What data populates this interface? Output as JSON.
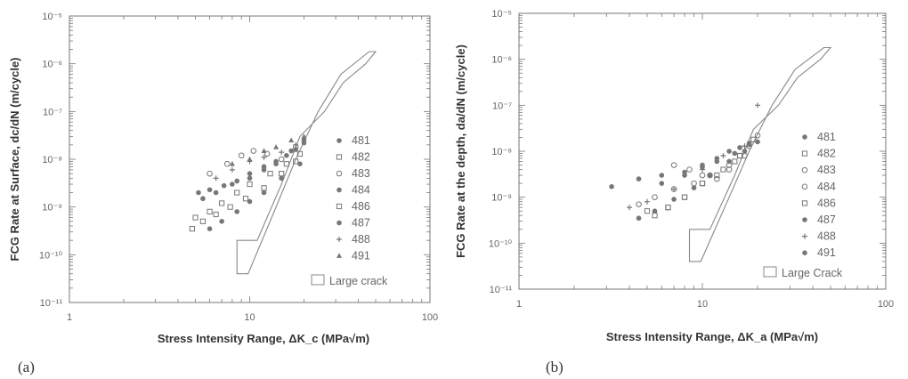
{
  "chart_data": [
    {
      "type": "scatter",
      "panel_label": "(a)",
      "xlabel": "Stress Intensity Range, ΔK_c   (MPa√m)",
      "ylabel": "FCG Rate at Surface,  dc/dN   (m/cycle)",
      "x_scale": "log",
      "y_scale": "log",
      "xlim": [
        1,
        100
      ],
      "ylim": [
        1e-11,
        1e-05
      ],
      "x_ticks": [
        "1",
        "10",
        "100"
      ],
      "y_ticks": [
        "10⁻⁵",
        "10⁻⁶",
        "10⁻⁷",
        "10⁻⁸",
        "10⁻⁹",
        "10⁻¹⁰",
        "10⁻¹¹"
      ],
      "legend": [
        "481",
        "482",
        "483",
        "484",
        "486",
        "487",
        "488",
        "491"
      ],
      "large_crack_label": "Large crack",
      "large_crack_band": [
        [
          8.5,
          4e-11
        ],
        [
          9.8,
          4e-11
        ],
        [
          14,
          1e-09
        ],
        [
          18,
          1e-08
        ],
        [
          24,
          1e-07
        ],
        [
          32,
          6e-07
        ],
        [
          46,
          1.8e-06
        ],
        [
          50,
          1.8e-06
        ],
        [
          44,
          1e-06
        ],
        [
          33,
          4e-07
        ],
        [
          26,
          1e-07
        ],
        [
          19,
          3e-08
        ],
        [
          15,
          3e-09
        ],
        [
          11,
          2e-10
        ],
        [
          8.5,
          2e-10
        ]
      ],
      "series": [
        {
          "name": "481",
          "x": [
            5.2,
            6.0,
            7.2,
            8.5,
            10.0,
            12.0,
            14.0,
            16.0,
            18.0,
            20.0
          ],
          "y": [
            2e-09,
            2.3e-09,
            2.8e-09,
            3.5e-09,
            4e-09,
            6e-09,
            8e-09,
            1.2e-08,
            1.6e-08,
            2.5e-08
          ]
        },
        {
          "name": "482",
          "x": [
            4.8,
            5.5,
            6.5,
            7.8,
            9.5,
            12.0,
            15.0,
            18.0
          ],
          "y": [
            3.5e-10,
            5e-10,
            7e-10,
            1e-09,
            1.5e-09,
            2.5e-09,
            5e-09,
            9e-09
          ]
        },
        {
          "name": "483",
          "x": [
            6.0,
            7.5,
            9.0,
            10.5,
            12.5,
            15.0,
            18.0
          ],
          "y": [
            5e-09,
            8e-09,
            1.2e-08,
            1.5e-08,
            1.3e-08,
            1e-08,
            1.8e-08
          ]
        },
        {
          "name": "484",
          "x": [
            5.5,
            6.5,
            8.0,
            10.0,
            12.0,
            14.0,
            17.0,
            20.0
          ],
          "y": [
            1.5e-09,
            2e-09,
            3e-09,
            5e-09,
            7e-09,
            9e-09,
            1.5e-08,
            2.2e-08
          ]
        },
        {
          "name": "486",
          "x": [
            5.0,
            6.0,
            7.0,
            8.5,
            10.0,
            13.0,
            16.0,
            19.0
          ],
          "y": [
            6e-10,
            8e-10,
            1.2e-09,
            2e-09,
            3e-09,
            5e-09,
            8e-09,
            1.3e-08
          ]
        },
        {
          "name": "487",
          "x": [
            6.0,
            7.0,
            8.5,
            10.0,
            12.0,
            15.0,
            19.0
          ],
          "y": [
            3.5e-10,
            5e-10,
            8e-10,
            1.3e-09,
            2e-09,
            4e-09,
            8e-09
          ]
        },
        {
          "name": "488",
          "x": [
            6.5,
            8.0,
            10.0,
            12.0,
            15.0,
            18.0
          ],
          "y": [
            4e-09,
            6e-09,
            9e-09,
            1.1e-08,
            1.4e-08,
            2e-08
          ]
        },
        {
          "name": "491",
          "x": [
            8.0,
            10.0,
            12.0,
            14.0,
            17.0,
            20.0
          ],
          "y": [
            8e-09,
            1e-08,
            1.5e-08,
            1.8e-08,
            2.5e-08,
            3e-08
          ]
        }
      ]
    },
    {
      "type": "scatter",
      "panel_label": "(b)",
      "xlabel": "Stress Intensity Range, ΔK_a   (MPa√m)",
      "ylabel": "FCG Rate at the depth,  da/dN   (m/cycle)",
      "x_scale": "log",
      "y_scale": "log",
      "xlim": [
        1,
        100
      ],
      "ylim": [
        1e-11,
        1e-05
      ],
      "x_ticks": [
        "1",
        "10",
        "100"
      ],
      "y_ticks": [
        "10⁻⁵",
        "10⁻⁶",
        "10⁻⁷",
        "10⁻⁸",
        "10⁻⁹",
        "10⁻¹⁰",
        "10⁻¹¹"
      ],
      "legend": [
        "481",
        "482",
        "483",
        "484",
        "486",
        "487",
        "488",
        "491"
      ],
      "large_crack_label": "Large Crack",
      "large_crack_band": [
        [
          8.5,
          4e-11
        ],
        [
          9.8,
          4e-11
        ],
        [
          14,
          1e-09
        ],
        [
          18,
          1e-08
        ],
        [
          24,
          1e-07
        ],
        [
          32,
          6e-07
        ],
        [
          46,
          1.8e-06
        ],
        [
          50,
          1.8e-06
        ],
        [
          44,
          1e-06
        ],
        [
          33,
          4e-07
        ],
        [
          26,
          1e-07
        ],
        [
          19,
          3e-08
        ],
        [
          15,
          3e-09
        ],
        [
          11,
          2e-10
        ],
        [
          8.5,
          2e-10
        ]
      ],
      "series": [
        {
          "name": "481",
          "x": [
            3.2,
            4.5,
            6.0,
            8.0,
            10.0,
            12.0,
            14.0,
            16.0,
            18.0,
            20.0
          ],
          "y": [
            1.7e-09,
            2.5e-09,
            3e-09,
            3.5e-09,
            5e-09,
            7e-09,
            1e-08,
            1.2e-08,
            1.4e-08,
            1.6e-08
          ]
        },
        {
          "name": "482",
          "x": [
            5.0,
            6.5,
            8.0,
            10.0,
            13.0,
            16.0,
            19.0
          ],
          "y": [
            5e-10,
            6e-10,
            1e-09,
            2e-09,
            4e-09,
            8e-09,
            1.8e-08
          ]
        },
        {
          "name": "483",
          "x": [
            7.0,
            8.5,
            10.0,
            12.0,
            14.0,
            16.0,
            18.0,
            20.0
          ],
          "y": [
            5e-09,
            4e-09,
            3e-09,
            2.5e-09,
            4e-09,
            8e-09,
            1.3e-08,
            2.2e-08
          ]
        },
        {
          "name": "484",
          "x": [
            4.5,
            5.5,
            7.0,
            9.0,
            11.0,
            14.0,
            17.0
          ],
          "y": [
            7e-10,
            1e-09,
            1.5e-09,
            2e-09,
            3e-09,
            5e-09,
            8e-09
          ]
        },
        {
          "name": "486",
          "x": [
            5.5,
            6.5,
            8.0,
            10.0,
            12.0,
            15.0
          ],
          "y": [
            4e-10,
            6e-10,
            1e-09,
            2e-09,
            3e-09,
            6e-09
          ]
        },
        {
          "name": "487",
          "x": [
            4.5,
            5.5,
            7.0,
            9.0,
            11.0,
            14.0,
            17.0
          ],
          "y": [
            3.5e-10,
            5e-10,
            9e-10,
            1.6e-09,
            3e-09,
            6e-09,
            1e-08
          ]
        },
        {
          "name": "488",
          "x": [
            4.0,
            5.0,
            7.0,
            10.0,
            13.0,
            17.0,
            20.0
          ],
          "y": [
            6e-10,
            8e-10,
            1.5e-09,
            4e-09,
            8e-09,
            1.3e-08,
            1e-07
          ]
        },
        {
          "name": "491",
          "x": [
            6.0,
            8.0,
            10.0,
            12.0,
            15.0,
            18.0
          ],
          "y": [
            2e-09,
            3e-09,
            4.5e-09,
            6e-09,
            9e-09,
            1.5e-08
          ]
        }
      ]
    }
  ]
}
